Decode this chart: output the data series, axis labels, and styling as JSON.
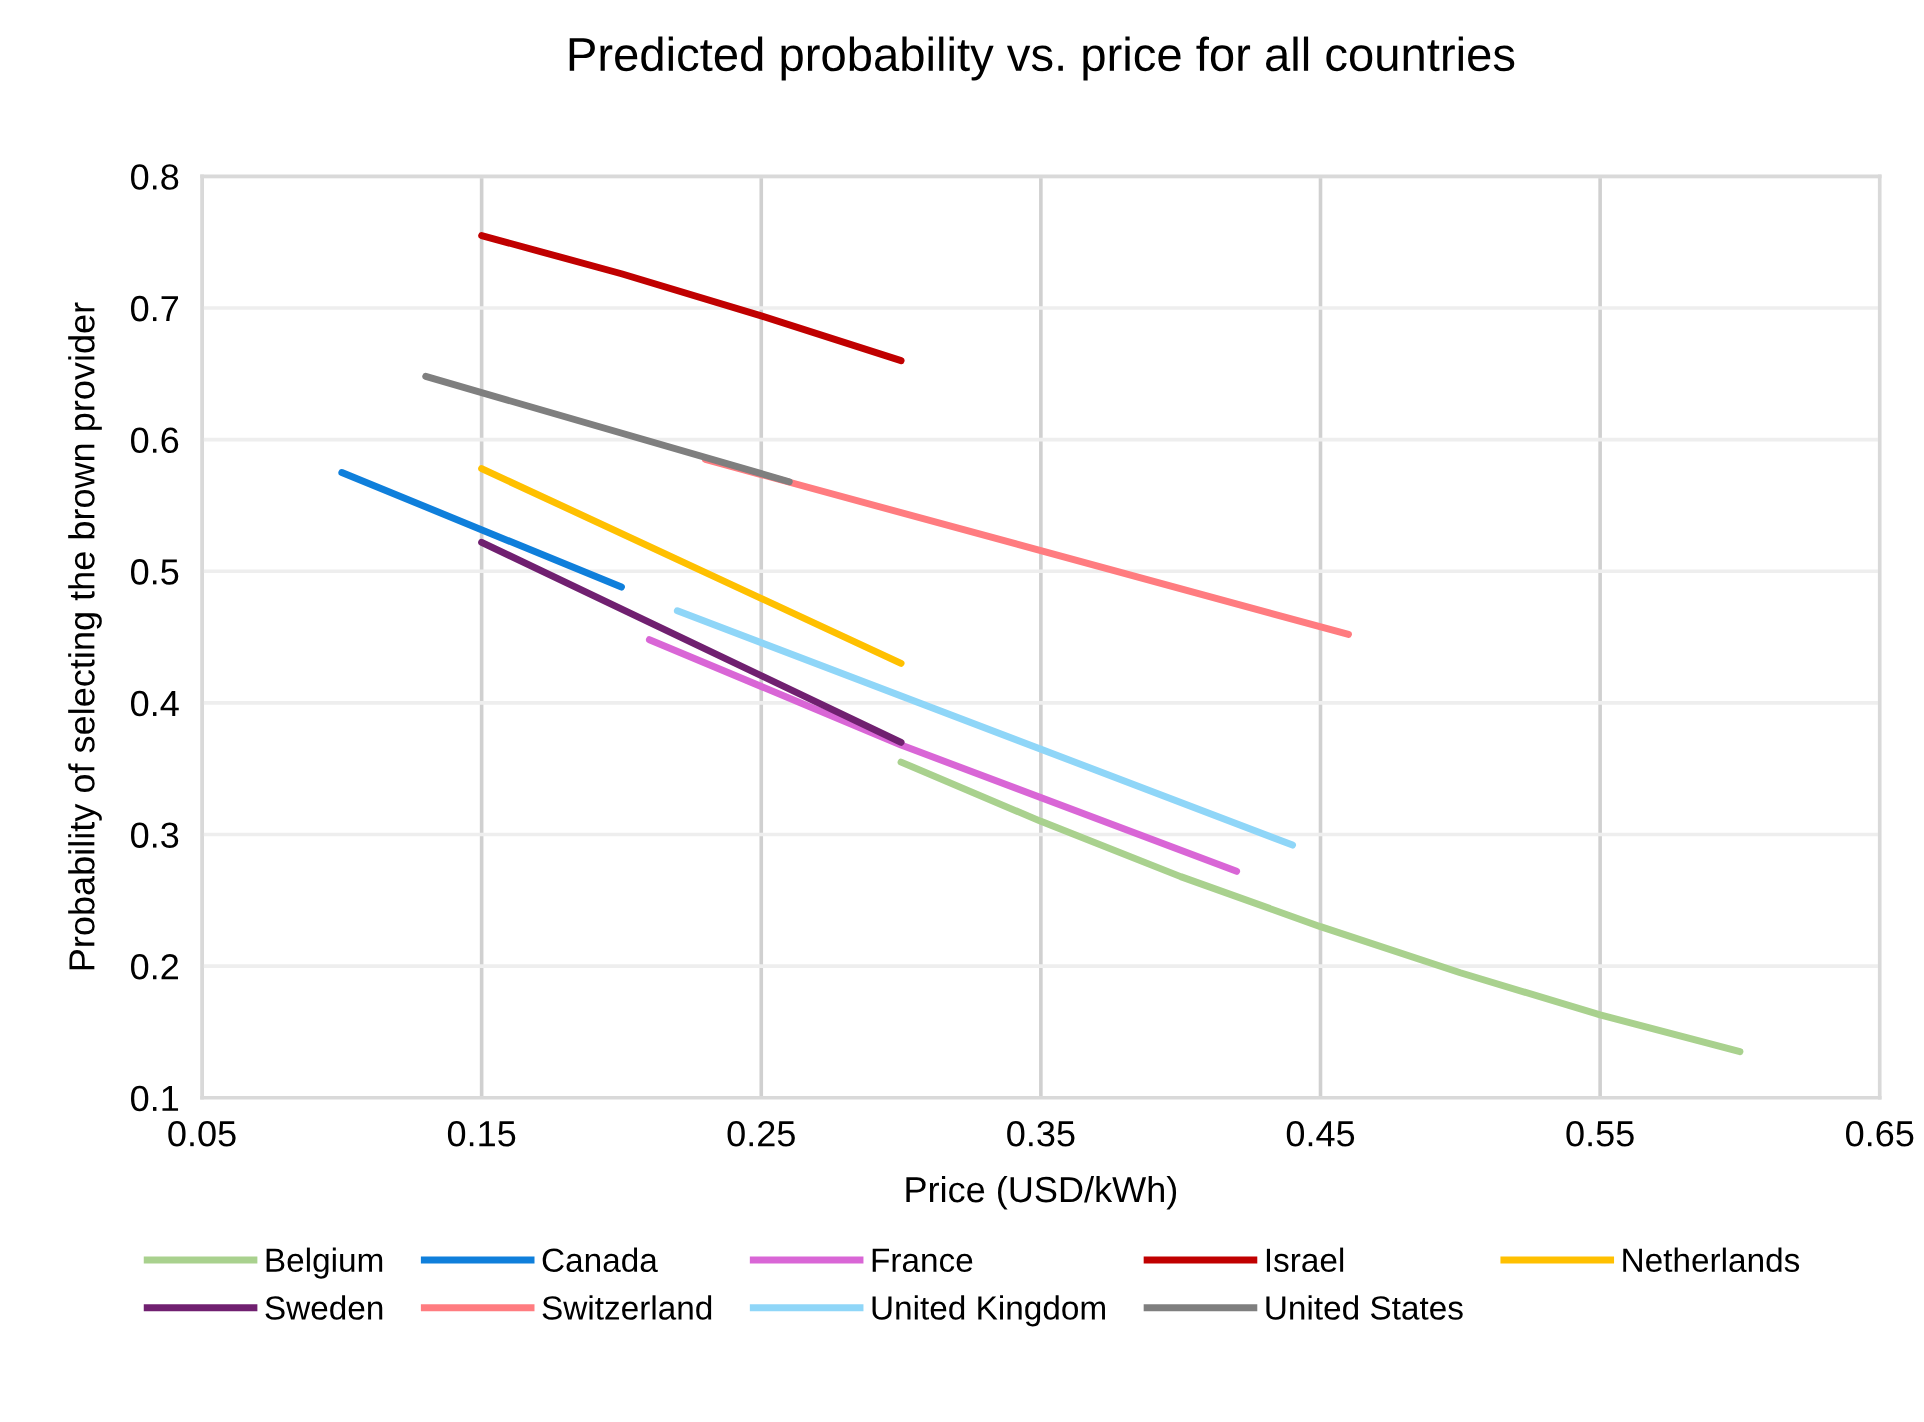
{
  "chart_data": {
    "type": "line",
    "title": "Predicted probability vs. price for all countries",
    "xlabel": "Price (USD/kWh)",
    "ylabel": "Probability of selecting the brown provider",
    "xlim": [
      0.05,
      0.65
    ],
    "xticks": [
      {
        "value": 0.05,
        "label": "0.05"
      },
      {
        "value": 0.15,
        "label": "0.15"
      },
      {
        "value": 0.25,
        "label": "0.25"
      },
      {
        "value": 0.35,
        "label": "0.35"
      },
      {
        "value": 0.45,
        "label": "0.45"
      },
      {
        "value": 0.55,
        "label": "0.55"
      },
      {
        "value": 0.65,
        "label": "0.65"
      }
    ],
    "ylim": [
      0.1,
      0.8
    ],
    "yticks": [
      0.1,
      0.2,
      0.3,
      0.4,
      0.5,
      0.6,
      0.7,
      0.8
    ],
    "grid": true,
    "legend": "bottom",
    "marker": "none",
    "line_style": "solid",
    "series": [
      {
        "name": "Belgium",
        "color": "#a9d18e",
        "x": [
          0.3,
          0.35,
          0.4,
          0.45,
          0.5,
          0.55,
          0.6
        ],
        "values": [
          0.355,
          0.31,
          0.268,
          0.23,
          0.195,
          0.163,
          0.135
        ]
      },
      {
        "name": "Canada",
        "color": "#0f7fdb",
        "x": [
          0.1,
          0.2
        ],
        "values": [
          0.575,
          0.488
        ]
      },
      {
        "name": "France",
        "color": "#d966d6",
        "x": [
          0.21,
          0.3,
          0.42
        ],
        "values": [
          0.448,
          0.368,
          0.272
        ]
      },
      {
        "name": "Israel",
        "color": "#c00000",
        "x": [
          0.15,
          0.2,
          0.25,
          0.3
        ],
        "values": [
          0.755,
          0.726,
          0.694,
          0.66
        ]
      },
      {
        "name": "Netherlands",
        "color": "#ffc000",
        "x": [
          0.15,
          0.3
        ],
        "values": [
          0.578,
          0.43
        ]
      },
      {
        "name": "Sweden",
        "color": "#702070",
        "x": [
          0.15,
          0.3
        ],
        "values": [
          0.522,
          0.37
        ]
      },
      {
        "name": "Switzerland",
        "color": "#ff7c80",
        "x": [
          0.23,
          0.46
        ],
        "values": [
          0.585,
          0.452
        ]
      },
      {
        "name": "United Kingdom",
        "color": "#8fd6f8",
        "x": [
          0.22,
          0.44
        ],
        "values": [
          0.47,
          0.292
        ]
      },
      {
        "name": "United States",
        "color": "#7f7f7f",
        "x": [
          0.13,
          0.26
        ],
        "values": [
          0.648,
          0.568
        ]
      }
    ]
  }
}
